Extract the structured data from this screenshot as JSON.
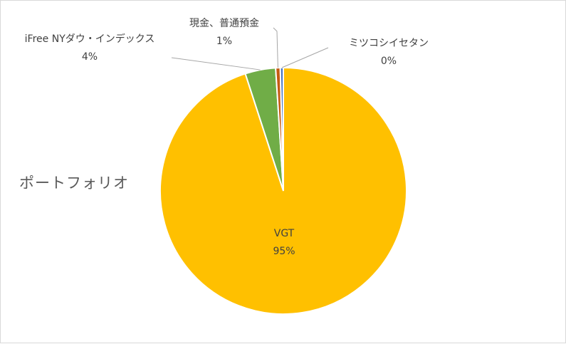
{
  "chart_data": {
    "type": "pie",
    "title": "ポートフォリオ",
    "series": [
      {
        "name": "VGT",
        "value": 95,
        "label": "95%",
        "color": "#FFC000"
      },
      {
        "name": "iFree NYダウ・インデックス",
        "value": 4,
        "label": "4%",
        "color": "#70AD47"
      },
      {
        "name": "現金、普通預金",
        "value": 0.6,
        "label": "1%",
        "color": "#C55A11"
      },
      {
        "name": "ミツコシイセタン",
        "value": 0.4,
        "label": "0%",
        "color": "#4472C4"
      }
    ],
    "legend": "none",
    "data_labels": "category-and-percent"
  }
}
